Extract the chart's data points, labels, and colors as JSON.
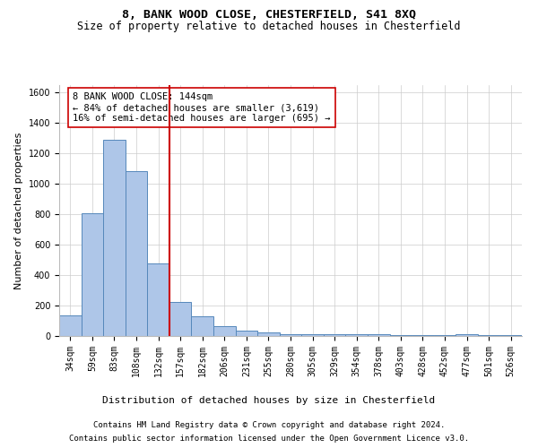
{
  "title": "8, BANK WOOD CLOSE, CHESTERFIELD, S41 8XQ",
  "subtitle": "Size of property relative to detached houses in Chesterfield",
  "xlabel": "Distribution of detached houses by size in Chesterfield",
  "ylabel": "Number of detached properties",
  "categories": [
    "34sqm",
    "59sqm",
    "83sqm",
    "108sqm",
    "132sqm",
    "157sqm",
    "182sqm",
    "206sqm",
    "231sqm",
    "255sqm",
    "280sqm",
    "305sqm",
    "329sqm",
    "354sqm",
    "378sqm",
    "403sqm",
    "428sqm",
    "452sqm",
    "477sqm",
    "501sqm",
    "526sqm"
  ],
  "values": [
    135,
    810,
    1290,
    1085,
    480,
    225,
    130,
    65,
    35,
    22,
    10,
    10,
    10,
    10,
    10,
    5,
    5,
    5,
    10,
    5,
    5
  ],
  "bar_color": "#aec6e8",
  "bar_edge_color": "#5588bb",
  "vline_x_index": 4,
  "vline_color": "#cc0000",
  "annotation_text": "8 BANK WOOD CLOSE: 144sqm\n← 84% of detached houses are smaller (3,619)\n16% of semi-detached houses are larger (695) →",
  "annotation_box_color": "#ffffff",
  "annotation_box_edge": "#cc0000",
  "ylim": [
    0,
    1650
  ],
  "yticks": [
    0,
    200,
    400,
    600,
    800,
    1000,
    1200,
    1400,
    1600
  ],
  "footer_line1": "Contains HM Land Registry data © Crown copyright and database right 2024.",
  "footer_line2": "Contains public sector information licensed under the Open Government Licence v3.0.",
  "background_color": "#ffffff",
  "grid_color": "#cccccc",
  "title_fontsize": 9.5,
  "subtitle_fontsize": 8.5,
  "axis_label_fontsize": 8,
  "tick_fontsize": 7,
  "annotation_fontsize": 7.5,
  "footer_fontsize": 6.5
}
